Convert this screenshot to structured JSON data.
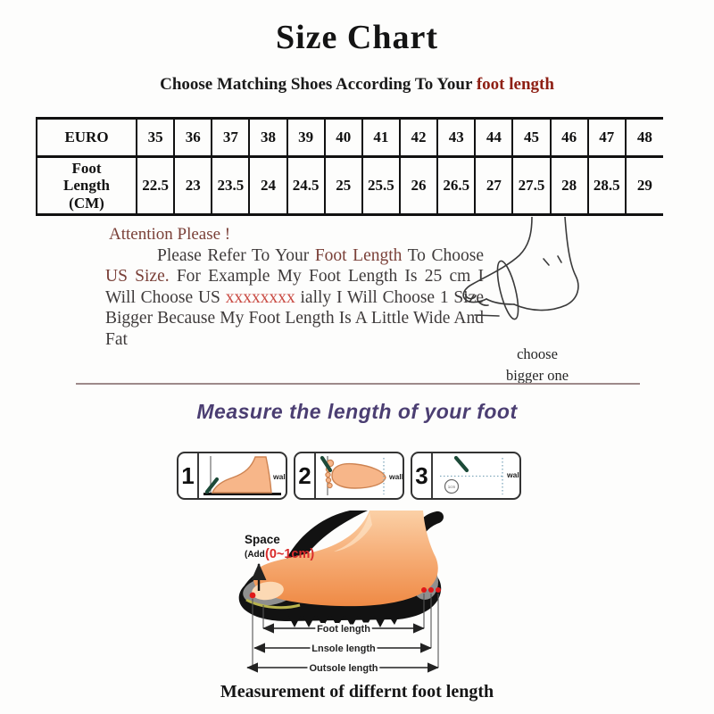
{
  "header": {
    "title": "Size Chart",
    "subtitle_prefix": "Choose Matching Shoes According To Your ",
    "subtitle_accent": "foot length"
  },
  "size_table": {
    "row1_header": "EURO",
    "row1_values": [
      "35",
      "36",
      "37",
      "38",
      "39",
      "40",
      "41",
      "42",
      "43",
      "44",
      "45",
      "46",
      "47",
      "48"
    ],
    "row2_header": "Foot\nLength\n(CM)",
    "row2_values": [
      "22.5",
      "23",
      "23.5",
      "24",
      "24.5",
      "25",
      "25.5",
      "26",
      "26.5",
      "27",
      "27.5",
      "28",
      "28.5",
      "29"
    ]
  },
  "attention": {
    "heading": "Attention Please !",
    "segments": [
      {
        "text": "Please Refer To Your ",
        "style": "body"
      },
      {
        "text": "Foot Length",
        "style": "maroon"
      },
      {
        "text": " To Choose ",
        "style": "body"
      },
      {
        "text": "US Size.",
        "style": "maroon"
      },
      {
        "text": " For Example My Foot Length Is 25 cm I Will Choose US ",
        "style": "body"
      },
      {
        "text": "xxxxxxxx",
        "style": "red"
      },
      {
        "text": " ially I Will Choose 1 Size Bigger Because My Foot Length Is A Little Wide And Fat",
        "style": "body"
      }
    ],
    "side_note": "choose\nbigger one"
  },
  "measure_section": {
    "heading": "Measure the length of your foot",
    "steps": [
      {
        "number": "1",
        "wall_label": "wall"
      },
      {
        "number": "2",
        "wall_label": "wall"
      },
      {
        "number": "3",
        "wall_label": "wall"
      }
    ],
    "circle_note": "1cm",
    "space_label": "Space",
    "space_add": "(Add",
    "space_range": "(0~1cm)",
    "arrow_labels": [
      "Foot length",
      "Lnsole length",
      "Outsole length"
    ],
    "caption": "Measurement of differnt foot length"
  },
  "colors": {
    "accent_maroon": "#7a4038",
    "accent_dark_red": "#8e1f14",
    "accent_bright_red": "#d92b2b",
    "accent_purple": "#4b3e72",
    "divider": "#9d8a8a",
    "skin": "#f7b689",
    "sole_black": "#111111",
    "pen_green": "#1c4a38"
  }
}
